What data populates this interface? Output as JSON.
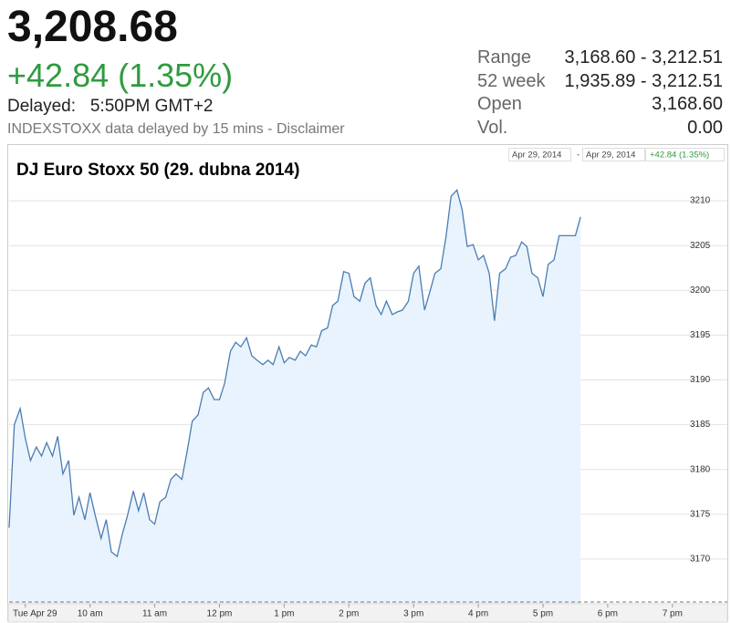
{
  "header": {
    "price": "3,208.68",
    "change": "+42.84 (1.35%)",
    "delayed_label": "Delayed:",
    "delayed_time": "5:50PM GMT+2",
    "disclaimer": "INDEXSTOXX data delayed by 15 mins - Disclaimer"
  },
  "stats": [
    [
      "Range",
      "3,168.60 - 3,212.51"
    ],
    [
      "52 week",
      "1,935.89 - 3,212.51"
    ],
    [
      "Open",
      "3,168.60"
    ],
    [
      "Vol.",
      "0.00"
    ]
  ],
  "toolbar": {
    "from": "Apr 29, 2014",
    "separator": "-",
    "to": "Apr 29, 2014",
    "change": "+42.84 (1.35%)"
  },
  "chart_data": {
    "type": "area",
    "title": "DJ Euro Stoxx 50 (29. dubna 2014)",
    "color": "#4a7db3",
    "fill": "#e9f3fd",
    "grid": true,
    "xlim": [
      8.75,
      19.2
    ],
    "ylim": [
      3165,
      3215
    ],
    "xticks": [
      {
        "value": 9,
        "label": "Tue Apr 29"
      },
      {
        "value": 10,
        "label": "10 am"
      },
      {
        "value": 11,
        "label": "11 am"
      },
      {
        "value": 12,
        "label": "12 pm"
      },
      {
        "value": 13,
        "label": "1 pm"
      },
      {
        "value": 14,
        "label": "2 pm"
      },
      {
        "value": 15,
        "label": "3 pm"
      },
      {
        "value": 16,
        "label": "4 pm"
      },
      {
        "value": 17,
        "label": "5 pm"
      },
      {
        "value": 18,
        "label": "6 pm"
      },
      {
        "value": 19,
        "label": "7 pm"
      }
    ],
    "yticks": [
      3170,
      3175,
      3180,
      3185,
      3190,
      3195,
      3200,
      3205,
      3210
    ],
    "x": [
      8.75,
      8.83,
      8.92,
      9,
      9.08,
      9.17,
      9.25,
      9.33,
      9.42,
      9.5,
      9.58,
      9.67,
      9.75,
      9.83,
      9.92,
      10,
      10.08,
      10.17,
      10.25,
      10.33,
      10.42,
      10.5,
      10.58,
      10.67,
      10.75,
      10.83,
      10.92,
      11,
      11.08,
      11.17,
      11.25,
      11.33,
      11.42,
      11.5,
      11.58,
      11.67,
      11.75,
      11.83,
      11.92,
      12,
      12.08,
      12.17,
      12.25,
      12.33,
      12.42,
      12.5,
      12.58,
      12.67,
      12.75,
      12.83,
      12.92,
      13,
      13.08,
      13.17,
      13.25,
      13.33,
      13.42,
      13.5,
      13.58,
      13.67,
      13.75,
      13.83,
      13.92,
      14,
      14.08,
      14.17,
      14.25,
      14.33,
      14.42,
      14.5,
      14.58,
      14.67,
      14.75,
      14.83,
      14.92,
      15,
      15.08,
      15.17,
      15.25,
      15.33,
      15.42,
      15.5,
      15.58,
      15.67,
      15.75,
      15.83,
      15.92,
      16,
      16.08,
      16.17,
      16.25,
      16.33,
      16.42,
      16.5,
      16.58,
      16.67,
      16.75,
      16.83,
      16.92,
      17,
      17.08,
      17.17,
      17.25,
      17.33,
      17.42,
      17.5,
      17.58
    ],
    "series": [
      {
        "name": "DJ Euro Stoxx 50",
        "values": [
          3173.5,
          3185,
          3186.8,
          3183.5,
          3181,
          3182.5,
          3181.5,
          3183,
          3181.5,
          3183.7,
          3179.5,
          3181,
          3174.9,
          3176.9,
          3174.4,
          3177.4,
          3174.9,
          3172.3,
          3174.4,
          3170.8,
          3170.3,
          3172.8,
          3174.9,
          3177.6,
          3175.4,
          3177.4,
          3174.4,
          3173.9,
          3176.4,
          3176.9,
          3178.9,
          3179.5,
          3178.9,
          3182,
          3185.4,
          3186.1,
          3188.6,
          3189.1,
          3187.8,
          3187.8,
          3189.6,
          3193.2,
          3194.2,
          3193.7,
          3194.7,
          3192.7,
          3192.2,
          3191.7,
          3192.2,
          3191.7,
          3193.7,
          3191.9,
          3192.5,
          3192.2,
          3193.2,
          3192.7,
          3193.9,
          3193.7,
          3195.5,
          3195.8,
          3198.3,
          3198.8,
          3202.1,
          3201.9,
          3199.3,
          3198.8,
          3200.8,
          3201.4,
          3198.3,
          3197.3,
          3198.8,
          3197.3,
          3197.6,
          3197.8,
          3198.8,
          3201.9,
          3202.7,
          3197.8,
          3199.8,
          3201.9,
          3202.4,
          3205.9,
          3210.5,
          3211.2,
          3209,
          3204.9,
          3205.1,
          3203.4,
          3203.9,
          3201.9,
          3196.6,
          3201.9,
          3202.4,
          3203.7,
          3203.9,
          3205.4,
          3204.9,
          3201.9,
          3201.4,
          3199.3,
          3202.9,
          3203.4,
          3206.1,
          3206.1,
          3206.1,
          3206.1,
          3208.2
        ]
      }
    ]
  }
}
